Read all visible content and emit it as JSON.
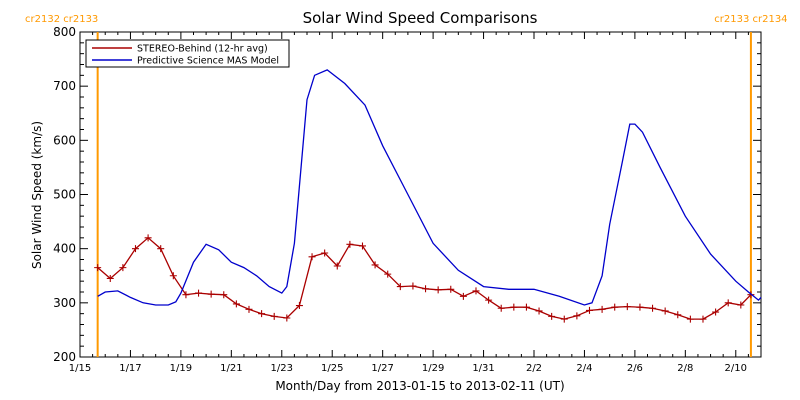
{
  "chart_data": {
    "type": "line",
    "title": "Solar Wind Speed Comparisons",
    "xlabel": "Month/Day from 2013-01-15 to 2013-02-11 (UT)",
    "ylabel": "Solar Wind Speed (km/s)",
    "ylim": [
      200,
      800
    ],
    "xlim": [
      0,
      27
    ],
    "x_unit": "days since 2013-01-15 00:00 UT",
    "x_ticks": [
      {
        "x": 0,
        "label": "1/15"
      },
      {
        "x": 2,
        "label": "1/17"
      },
      {
        "x": 4,
        "label": "1/19"
      },
      {
        "x": 6,
        "label": "1/21"
      },
      {
        "x": 8,
        "label": "1/23"
      },
      {
        "x": 10,
        "label": "1/25"
      },
      {
        "x": 12,
        "label": "1/27"
      },
      {
        "x": 14,
        "label": "1/29"
      },
      {
        "x": 16,
        "label": "1/31"
      },
      {
        "x": 18,
        "label": "2/2"
      },
      {
        "x": 20,
        "label": "2/4"
      },
      {
        "x": 22,
        "label": "2/6"
      },
      {
        "x": 24,
        "label": "2/8"
      },
      {
        "x": 26,
        "label": "2/10"
      }
    ],
    "y_ticks": [
      200,
      300,
      400,
      500,
      600,
      700,
      800
    ],
    "grid": false,
    "legend_position": "top-left",
    "carrington_markers": [
      {
        "x": 0.7,
        "label_left": "cr2132",
        "label_right": "cr2133",
        "color": "#ff9900"
      },
      {
        "x": 26.6,
        "label_left": "cr2133",
        "label_right": "cr2134",
        "color": "#ff9900"
      }
    ],
    "series": [
      {
        "name": "STEREO-Behind (12-hr avg)",
        "color": "#aa0000",
        "marker": "plus",
        "x": [
          0.7,
          1.2,
          1.7,
          2.2,
          2.7,
          3.2,
          3.7,
          4.2,
          4.7,
          5.2,
          5.7,
          6.2,
          6.7,
          7.2,
          7.7,
          8.2,
          8.7,
          9.2,
          9.7,
          10.2,
          10.7,
          11.2,
          11.7,
          12.2,
          12.7,
          13.2,
          13.7,
          14.2,
          14.7,
          15.2,
          15.7,
          16.2,
          16.7,
          17.2,
          17.7,
          18.2,
          18.7,
          19.2,
          19.7,
          20.2,
          20.7,
          21.2,
          21.7,
          22.2,
          22.7,
          23.2,
          23.7,
          24.2,
          24.7,
          25.2,
          25.7,
          26.2,
          26.6
        ],
        "y": [
          365,
          345,
          365,
          400,
          420,
          400,
          350,
          315,
          318,
          316,
          315,
          298,
          288,
          280,
          275,
          272,
          295,
          385,
          392,
          368,
          408,
          405,
          370,
          353,
          330,
          331,
          326,
          324,
          325,
          312,
          322,
          305,
          290,
          292,
          292,
          285,
          275,
          270,
          276,
          286,
          288,
          292,
          293,
          292,
          290,
          285,
          278,
          270,
          270,
          283,
          300,
          296,
          315
        ]
      },
      {
        "name": "Predictive Science MAS Model",
        "color": "#0000cc",
        "marker": "none",
        "x": [
          0.7,
          1.0,
          1.5,
          2.0,
          2.5,
          3.0,
          3.5,
          3.8,
          4.0,
          4.5,
          5.0,
          5.5,
          6.0,
          6.5,
          7.0,
          7.5,
          8.0,
          8.2,
          8.5,
          9.0,
          9.3,
          9.8,
          10.5,
          11.3,
          12.0,
          13.0,
          14.0,
          15.0,
          16.0,
          17.0,
          18.0,
          19.0,
          20.0,
          20.3,
          20.7,
          21.0,
          21.5,
          21.8,
          22.0,
          22.3,
          23.0,
          24.0,
          25.0,
          26.0,
          26.5,
          26.9,
          27.0
        ],
        "y": [
          312,
          320,
          322,
          310,
          300,
          296,
          296,
          302,
          318,
          375,
          408,
          398,
          375,
          365,
          350,
          330,
          318,
          330,
          410,
          675,
          720,
          730,
          705,
          665,
          590,
          500,
          410,
          360,
          330,
          325,
          325,
          312,
          296,
          300,
          350,
          445,
          560,
          630,
          630,
          615,
          550,
          460,
          390,
          340,
          320,
          305,
          310
        ]
      }
    ]
  }
}
